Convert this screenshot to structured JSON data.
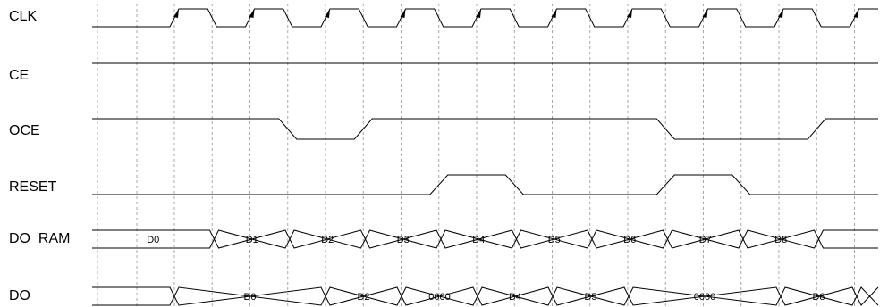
{
  "diagram": {
    "signals": [
      {
        "name": "CLK",
        "type": "clock"
      },
      {
        "name": "CE",
        "type": "level"
      },
      {
        "name": "OCE",
        "type": "level"
      },
      {
        "name": "RESET",
        "type": "level"
      },
      {
        "name": "DO_RAM",
        "type": "bus"
      },
      {
        "name": "DO",
        "type": "bus"
      }
    ],
    "ce": {
      "value": 1
    },
    "oce": {
      "value": "high",
      "low_intervals": [
        [
          1.5,
          2.5
        ],
        [
          6.5,
          8.5
        ]
      ]
    },
    "reset": {
      "value": "low",
      "high_intervals": [
        [
          3.5,
          4.5
        ],
        [
          6.5,
          7.5
        ]
      ]
    },
    "do_ram": [
      {
        "label": "D0"
      },
      {
        "label": "D1"
      },
      {
        "label": "D2"
      },
      {
        "label": "D3"
      },
      {
        "label": "D4"
      },
      {
        "label": "D5"
      },
      {
        "label": "D6"
      },
      {
        "label": "D7"
      },
      {
        "label": "D8"
      },
      {
        "label": ""
      }
    ],
    "do_out": [
      {
        "label": ""
      },
      {
        "label": "D0"
      },
      {
        "label": "D2"
      },
      {
        "label": "0000"
      },
      {
        "label": "D4"
      },
      {
        "label": "D5"
      },
      {
        "label": "0000"
      },
      {
        "label": "D8"
      },
      {
        "label": ""
      }
    ],
    "colors": {
      "line": "#000000",
      "grid": "#a8a8a8",
      "background": "#ffffff"
    }
  }
}
